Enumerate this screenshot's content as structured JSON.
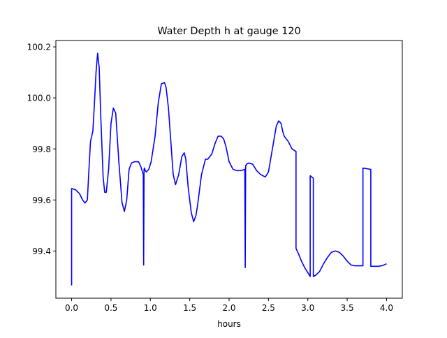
{
  "chart_data": {
    "type": "line",
    "title": "Water Depth h at gauge 120",
    "xlabel": "hours",
    "ylabel": "",
    "xlim": [
      -0.2,
      4.2
    ],
    "ylim": [
      99.215,
      100.225
    ],
    "xticks": [
      0.0,
      0.5,
      1.0,
      1.5,
      2.0,
      2.5,
      3.0,
      3.5,
      4.0
    ],
    "xtick_labels": [
      "0.0",
      "0.5",
      "1.0",
      "1.5",
      "2.0",
      "2.5",
      "3.0",
      "3.5",
      "4.0"
    ],
    "yticks": [
      99.4,
      99.6,
      99.8,
      100.0,
      100.2
    ],
    "ytick_labels": [
      "99.4",
      "99.6",
      "99.8",
      "100.0",
      "100.2"
    ],
    "grid": false,
    "legend": "none",
    "line_color": "#0000ff",
    "series": [
      {
        "x": [
          0.0,
          0.0,
          0.05,
          0.1,
          0.14,
          0.17,
          0.2,
          0.22,
          0.24,
          0.27,
          0.29,
          0.31,
          0.33,
          0.35,
          0.37,
          0.4,
          0.42,
          0.44,
          0.47,
          0.5,
          0.53,
          0.56,
          0.6,
          0.64,
          0.67,
          0.7,
          0.73,
          0.76,
          0.8,
          0.85,
          0.88,
          0.91,
          0.915,
          0.92,
          0.925,
          0.935,
          0.95,
          0.98,
          1.01,
          1.06,
          1.1,
          1.14,
          1.18,
          1.2,
          1.23,
          1.26,
          1.29,
          1.32,
          1.36,
          1.4,
          1.43,
          1.45,
          1.48,
          1.52,
          1.55,
          1.58,
          1.6,
          1.65,
          1.7,
          1.73,
          1.78,
          1.82,
          1.86,
          1.9,
          1.93,
          1.96,
          2.0,
          2.05,
          2.1,
          2.15,
          2.2,
          2.205,
          2.21,
          2.215,
          2.22,
          2.25,
          2.3,
          2.35,
          2.4,
          2.46,
          2.5,
          2.55,
          2.6,
          2.63,
          2.66,
          2.68,
          2.7,
          2.75,
          2.8,
          2.85,
          2.85,
          2.88,
          2.92,
          2.96,
          3.0,
          3.03,
          3.03,
          3.07,
          3.07,
          3.1,
          3.15,
          3.2,
          3.25,
          3.3,
          3.35,
          3.4,
          3.45,
          3.5,
          3.55,
          3.6,
          3.65,
          3.7,
          3.7,
          3.8,
          3.8,
          3.85,
          3.9,
          3.95,
          4.0
        ],
        "y": [
          99.265,
          99.645,
          99.64,
          99.625,
          99.6,
          99.588,
          99.6,
          99.72,
          99.83,
          99.87,
          99.98,
          100.1,
          100.175,
          100.12,
          99.93,
          99.69,
          99.63,
          99.63,
          99.72,
          99.9,
          99.96,
          99.94,
          99.75,
          99.59,
          99.555,
          99.6,
          99.72,
          99.745,
          99.75,
          99.75,
          99.73,
          99.7,
          99.345,
          99.72,
          99.725,
          99.715,
          99.71,
          99.72,
          99.75,
          99.85,
          99.98,
          100.055,
          100.06,
          100.04,
          99.96,
          99.83,
          99.7,
          99.66,
          99.7,
          99.77,
          99.785,
          99.76,
          99.65,
          99.55,
          99.515,
          99.54,
          99.58,
          99.7,
          99.76,
          99.76,
          99.78,
          99.82,
          99.85,
          99.85,
          99.84,
          99.81,
          99.75,
          99.72,
          99.715,
          99.715,
          99.72,
          99.335,
          99.735,
          99.735,
          99.74,
          99.745,
          99.74,
          99.715,
          99.7,
          99.69,
          99.71,
          99.8,
          99.89,
          99.91,
          99.9,
          99.87,
          99.85,
          99.83,
          99.8,
          99.79,
          99.41,
          99.39,
          99.36,
          99.335,
          99.315,
          99.3,
          99.695,
          99.685,
          99.3,
          99.305,
          99.32,
          99.35,
          99.375,
          99.395,
          99.4,
          99.395,
          99.38,
          99.36,
          99.345,
          99.342,
          99.342,
          99.342,
          99.725,
          99.72,
          99.34,
          99.34,
          99.34,
          99.343,
          99.35
        ]
      }
    ]
  }
}
